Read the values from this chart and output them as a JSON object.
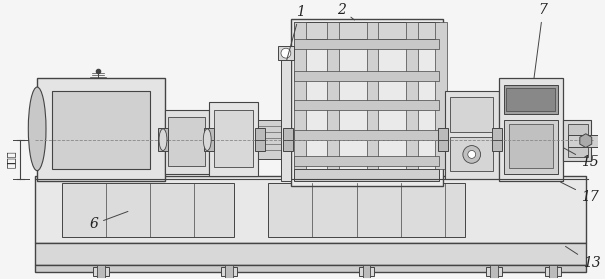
{
  "bg_color": "#f5f5f5",
  "lc": "#444444",
  "dc": "#222222",
  "fc_light": "#eeeeee",
  "fc_mid": "#d8d8d8",
  "fc_dark": "#bbbbbb",
  "fc_darker": "#999999",
  "fc_white": "#ffffff",
  "center_line_color": "#777777",
  "label_color": "#111111",
  "fig_w": 6.05,
  "fig_h": 2.79,
  "dpi": 100
}
